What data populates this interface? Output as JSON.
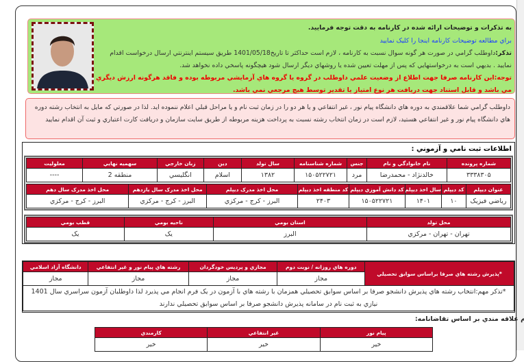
{
  "notice": {
    "line1": "به تذكرات و توضيحات ارائه شده در كارنامه به دقت توجه فرماييد.",
    "link": "براي مطالعه توضيحات كارنامه اينجا را كليک نماييد",
    "reminder_label": "تذكر:",
    "reminder": "داوطلب گرامي در صورت هر گونه سوال نسبت به كارنامه ، لازم است حداكثر تا تاريخ1401/05/18 طريق سيستم اينترنتي ارسال درخواست اقدام نماييد . بديهي است به درخواستهايي كه پس از مهلت تعيين شده يا روشهاي ديگر ارسال شود هيچگونه پاسخي داده نخواهد شد.",
    "warning": "توجه:اين كارنامه صرفا جهت اطلاع از وضعيت علمي داوطلب در گروه يا گروه هاي آزمايشي مربوطه بوده و فاقد هرگونه ارزش ديگري مي باشد و قابل استناد جهت دريافت هر نوع امتياز يا تقدير توسط هيچ مرجعي نمي باشد."
  },
  "notice2": "داوطلب گرامي شما علاقمندي به دوره هاي دانشگاه پيام نور ، غير انتفاعي و يا هر دو را در زمان ثبت نام و يا مراحل قبلي اعلام ننموده ايد. لذا در صورتي كه مايل به انتخاب رشته دوره هاي دانشگاه پيام نور و غير انتفاعي هستيد، لازم است در زمان انتخاب رشته نسبت به پرداخت هزينه مربوطه از طريق سايت سازمان و دريافت كارت اعتباري و ثبت آن اقدام نماييد",
  "section_title": "اطلاعات ثبت نامي و آزموني :",
  "t1": {
    "headers": [
      "شماره پرونده",
      "نام خانوادگي و نام",
      "جنس",
      "شماره شناسنامه",
      "سال تولد",
      "دين",
      "زبان خارجي",
      "سهميه نهايي",
      "معلوليت"
    ],
    "values": [
      "۳۳۳۸۳۰۵",
      "خالدنژاد - محمدرضا",
      "مرد",
      "۱۵۰۵۲۲۷۲۱",
      "۱۳۸۲",
      "اسلام",
      "انگليسي",
      "منطقه 2",
      "----"
    ]
  },
  "t2": {
    "headers": [
      "عنوان ديپلم",
      "كد ديپلم",
      "سال اخذ ديپلم",
      "كد دانش آموزي ديپلم",
      "كد منطقه اخذ ديپلم",
      "محل اخذ مدرک ديپلم",
      "محل اخذ مدرک سال يازدهم",
      "محل اخذ مدرک سال دهم"
    ],
    "values": [
      "رياضي فيزيک",
      "۱۰",
      "۱۴۰۱",
      "۱۵۰۵۲۲۷۲۱",
      "۲۴۰۳",
      "البرز - كرج - مركزي",
      "البرز - كرج - مركزي",
      "البرز - كرج - مركزي"
    ]
  },
  "t3": {
    "headers": [
      "محل تولد",
      "استان بومي",
      "ناحيه بومي",
      "قطب بومي"
    ],
    "values": [
      "تهران - تهران - مركزي",
      "البرز",
      "يک",
      "يک"
    ]
  },
  "t4": {
    "title": "*پذيرش رشته هاي صرفا براساس سوابق تحصيلي",
    "headers": [
      "دوره هاي روزانه / نوبت دوم",
      "مجازي و پرديس خودگردان",
      "رشته هاي پيام نور و غير انتفاعي",
      "دانشگاه آزاد اسلامي"
    ],
    "values": [
      "مجاز",
      "مجاز",
      "مجاز",
      "مجاز"
    ],
    "note": "*تذكر مهم:انتخاب رشته هاي پذيرش دانشجو صرفا بر اساس سوابق تحصيلي همزمان با رشته هاي با آزمون در يک فرم انجام مي پذيرد لذا داوطلبان آزمون سراسري سال 1401 نيازي به ثبت نام در سامانه پذيرش دانشجو صرفا بر اساس سوابق تحصيلي ندارند"
  },
  "interest": {
    "title": "اعلام علاقه مندي بر اساس تقاضانامه:",
    "headers": [
      "پيام نور",
      "غير انتفاعي",
      "كارمندي"
    ],
    "values": [
      "خير",
      "خير",
      "خير"
    ]
  },
  "colors": {
    "header_red": "#c00a2a",
    "notice_green": "#a6e87a",
    "notice_pink": "#fde3e3",
    "link_blue": "#1a3cff",
    "warning_red": "#e00000"
  }
}
